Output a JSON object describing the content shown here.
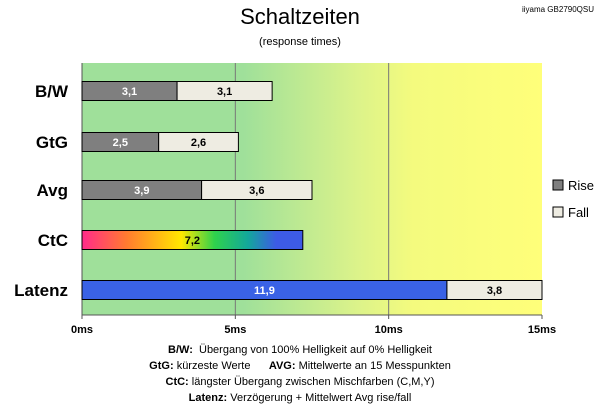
{
  "header": {
    "title": "Schaltzeiten",
    "subtitle": "(response times)",
    "model": "iiyama GB2790QSU"
  },
  "colors": {
    "rise": "#7f7f7f",
    "fall": "#eeece2",
    "latency": "#3a62e6",
    "bg_green": "#9fe09a",
    "bg_yellow": "#ffff7a",
    "gridline": "#777777"
  },
  "chart_data": {
    "type": "bar",
    "orientation": "horizontal",
    "stacked": true,
    "categories": [
      "B/W",
      "GtG",
      "Avg",
      "CtC",
      "Latenz"
    ],
    "xlim": [
      0,
      15
    ],
    "xticks": [
      0,
      5,
      10,
      15
    ],
    "xtick_labels": [
      "0ms",
      "5ms",
      "10ms",
      "15ms"
    ],
    "series": [
      {
        "name": "Rise",
        "values": [
          3.1,
          2.5,
          3.9,
          null,
          null
        ]
      },
      {
        "name": "Fall",
        "values": [
          3.1,
          2.6,
          3.6,
          null,
          3.8
        ]
      }
    ],
    "ctc": {
      "value": 7.2
    },
    "latency": {
      "value": 11.9
    },
    "data_labels": {
      "rise": [
        "3,1",
        "2,5",
        "3,9",
        "",
        ""
      ],
      "fall": [
        "3,1",
        "2,6",
        "3,6",
        "",
        "3,8"
      ],
      "ctc": "7,2",
      "latency": "11,9"
    },
    "legend": {
      "position": "right",
      "entries": [
        "Rise",
        "Fall"
      ]
    }
  },
  "notes": {
    "line1_key": "B/W:",
    "line1_text": "Übergang von 100% Helligkeit auf 0% Helligkeit",
    "line2_key_a": "GtG:",
    "line2_text_a": "kürzeste Werte",
    "line2_key_b": "AVG:",
    "line2_text_b": "Mittelwerte an 15 Messpunkten",
    "line3_key": "CtC:",
    "line3_text": "längster Übergang zwischen Mischfarben (C,M,Y)",
    "line4_key": "Latenz:",
    "line4_text": "Verzögerung + Mittelwert Avg rise/fall"
  }
}
